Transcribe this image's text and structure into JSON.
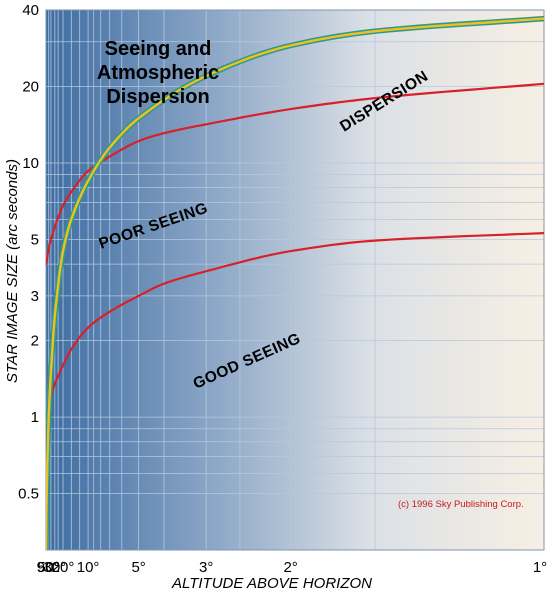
{
  "chart_data": {
    "type": "line",
    "title": [
      "Seeing and",
      "Atmospheric",
      "Dispersion"
    ],
    "xlabel": "ALTITUDE  ABOVE  HORIZON",
    "ylabel": "STAR IMAGE SIZE  (arc seconds)",
    "x_scale": "airmass (secant of zenith angle)",
    "y_scale": "log",
    "ylim": [
      0.3,
      40
    ],
    "x_ticks": [
      {
        "alt": 90,
        "label": "90°"
      },
      {
        "alt": 50,
        "label": "50°"
      },
      {
        "alt": 30,
        "label": "30°"
      },
      {
        "alt": 20,
        "label": "20°"
      },
      {
        "alt": 10,
        "label": "10°"
      },
      {
        "alt": 5,
        "label": "5°"
      },
      {
        "alt": 3,
        "label": "3°"
      },
      {
        "alt": 2,
        "label": "2°"
      },
      {
        "alt": 1,
        "label": "1°"
      }
    ],
    "y_ticks": [
      {
        "value": 0.5,
        "label": "0.5"
      },
      {
        "value": 1,
        "label": "1"
      },
      {
        "value": 2,
        "label": "2"
      },
      {
        "value": 3,
        "label": "3"
      },
      {
        "value": 5,
        "label": "5"
      },
      {
        "value": 10,
        "label": "10"
      },
      {
        "value": 20,
        "label": "20"
      },
      {
        "value": 40,
        "label": "40"
      }
    ],
    "grid": true,
    "series": [
      {
        "name": "POOR  SEEING",
        "color": "#d8202a",
        "x": [
          90,
          70,
          50,
          40,
          30,
          25,
          20,
          15,
          10,
          7,
          5,
          4,
          3,
          2,
          1.5,
          1
        ],
        "y": [
          4.0,
          4.1,
          4.6,
          5.0,
          5.6,
          6.1,
          6.8,
          7.7,
          9.3,
          10.6,
          12.2,
          13.1,
          14.2,
          16.3,
          18.0,
          20.5
        ]
      },
      {
        "name": "GOOD  SEEING",
        "color": "#d8202a",
        "x": [
          90,
          70,
          50,
          40,
          30,
          25,
          20,
          15,
          10,
          7,
          5,
          4,
          3,
          2,
          1.5,
          1
        ],
        "y": [
          0.97,
          1.0,
          1.1,
          1.2,
          1.35,
          1.45,
          1.6,
          1.85,
          2.25,
          2.6,
          3.0,
          3.35,
          3.75,
          4.5,
          4.95,
          5.3
        ]
      },
      {
        "name": "DISPERSION",
        "color": "#e7a41c",
        "x": [
          90,
          75,
          65,
          55,
          50,
          40,
          30,
          20,
          15,
          10,
          7,
          5,
          3,
          2,
          1.5,
          1
        ],
        "y": [
          0.28,
          0.4,
          0.55,
          0.8,
          1.0,
          1.5,
          2.5,
          4.5,
          6.0,
          8.5,
          11.5,
          15,
          22,
          29,
          33,
          37
        ]
      }
    ]
  },
  "copyright": "(c) 1996 Sky Publishing Corp.",
  "colors": {
    "background_left": "#3f6fa4",
    "background_right": "#f7efe6",
    "grid_line": "#b6c8dc",
    "seeing_curve": "#d8202a",
    "dispersion_outer": "#2f9a8a",
    "dispersion_inner": "#f0c020"
  }
}
